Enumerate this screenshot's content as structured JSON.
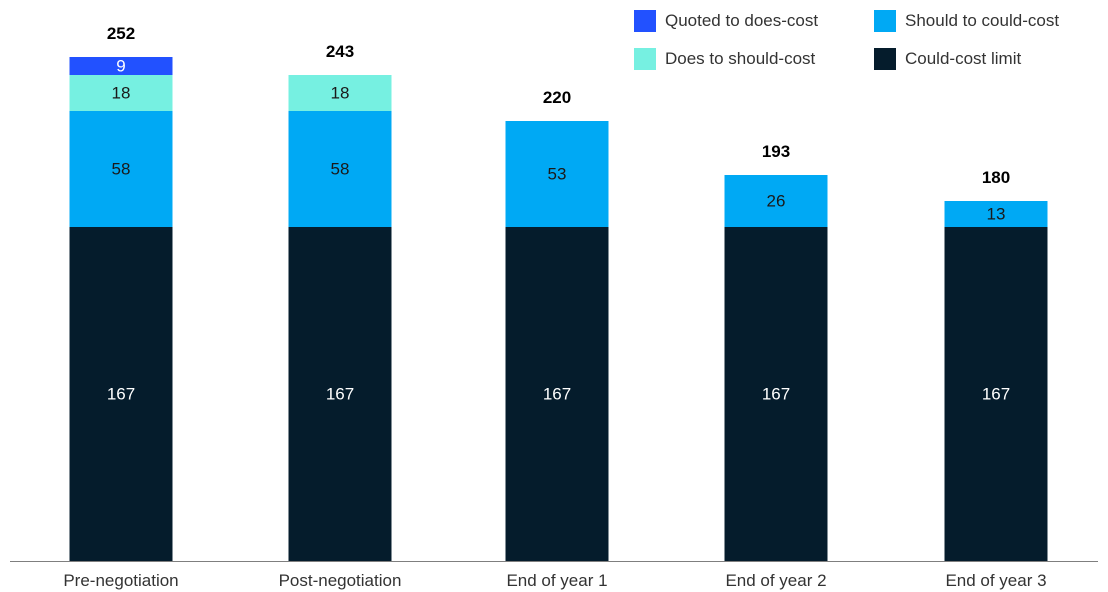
{
  "chart_data": {
    "type": "bar",
    "stacked": true,
    "title": "",
    "xlabel": "",
    "ylabel": "",
    "ylim": [
      0,
      265
    ],
    "grid": false,
    "legend_position": "top-right",
    "categories": [
      "Pre-negotiation",
      "Post-negotiation",
      "End of year 1",
      "End of year 2",
      "End of year 3"
    ],
    "totals": [
      252,
      243,
      220,
      193,
      180
    ],
    "series": [
      {
        "name": "Could-cost limit",
        "color": "#051c2c",
        "values": [
          167,
          167,
          167,
          167,
          167
        ]
      },
      {
        "name": "Should to could-cost",
        "color": "#00a9f4",
        "values": [
          58,
          58,
          53,
          26,
          13
        ]
      },
      {
        "name": "Does to should-cost",
        "color": "#76f0e1",
        "values": [
          18,
          18,
          0,
          0,
          0
        ]
      },
      {
        "name": "Quoted to does-cost",
        "color": "#2251ff",
        "values": [
          9,
          0,
          0,
          0,
          0
        ]
      }
    ],
    "legend": [
      {
        "name": "Quoted to does-cost",
        "color": "#2251ff"
      },
      {
        "name": "Should to could-cost",
        "color": "#00a9f4"
      },
      {
        "name": "Does to should-cost",
        "color": "#76f0e1"
      },
      {
        "name": "Could-cost limit",
        "color": "#051c2c"
      }
    ]
  }
}
